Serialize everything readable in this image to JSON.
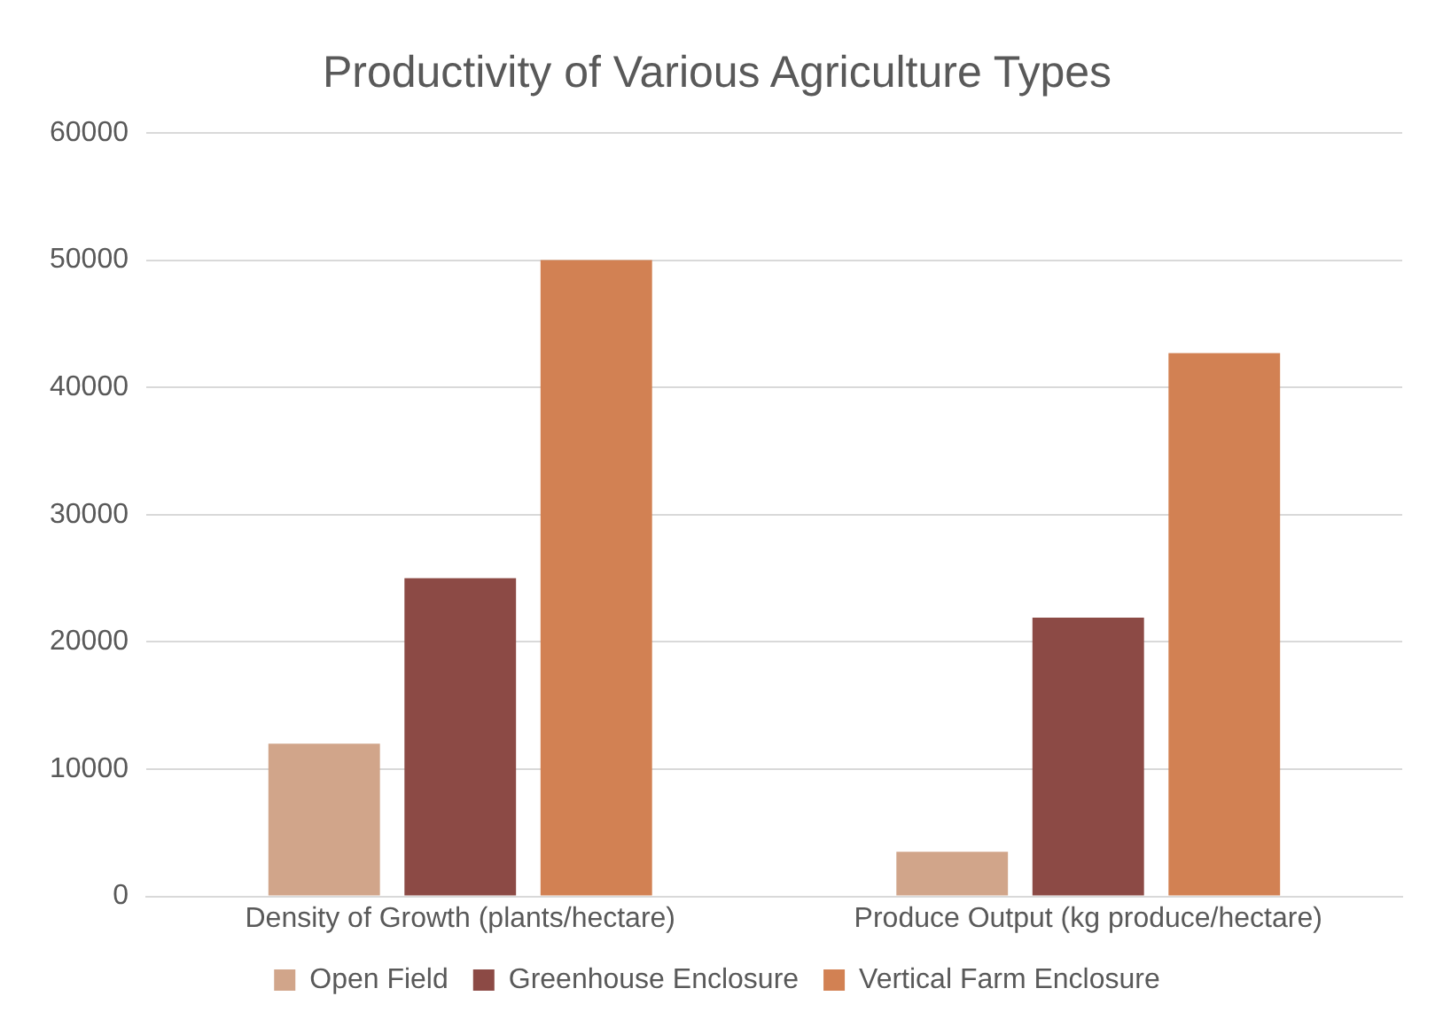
{
  "chart_data": {
    "type": "bar",
    "title": "Productivity of Various Agriculture Types",
    "categories": [
      "Density of Growth (plants/hectare)",
      "Produce Output (kg produce/hectare)"
    ],
    "series": [
      {
        "name": "Open Field",
        "color": "#d1a58a",
        "values": [
          12000,
          3500
        ]
      },
      {
        "name": "Greenhouse Enclosure",
        "color": "#8c4a45",
        "values": [
          25000,
          21900
        ]
      },
      {
        "name": "Vertical Farm Enclosure",
        "color": "#d28153",
        "values": [
          50000,
          42700
        ]
      }
    ],
    "ylim": [
      0,
      60000
    ],
    "yticks": [
      0,
      10000,
      20000,
      30000,
      40000,
      50000,
      60000
    ],
    "grid": "y",
    "legend": "bottom"
  }
}
